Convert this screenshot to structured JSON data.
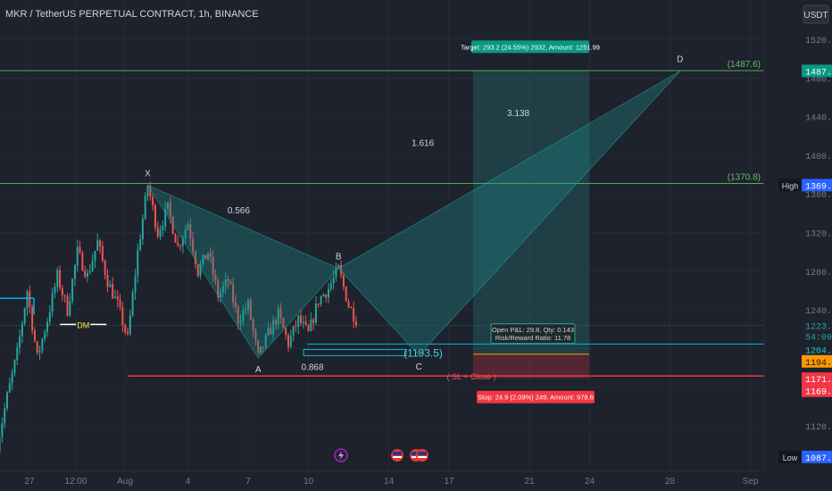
{
  "header": {
    "symbol_title": "MKR / TetherUS PERPETUAL CONTRACT, 1h, BINANCE",
    "currency": "USDT"
  },
  "colors": {
    "background": "#1e222d",
    "bull": "#26a69a",
    "bear": "#ef5350",
    "pattern_fill": "#1e8a8a",
    "target": "#26a69a",
    "stop": "#f23645",
    "level_line": "#4caf50",
    "entry_line": "#00bcd4"
  },
  "chart_data": {
    "type": "candlestick",
    "title": "MKR / TetherUS PERPETUAL CONTRACT, 1h, BINANCE",
    "interval": "1h",
    "ylim": [
      1080,
      1530
    ],
    "y_ticks": [
      1120,
      1160,
      1200,
      1240,
      1280,
      1320,
      1360,
      1400,
      1440,
      1480,
      1520
    ],
    "x_ticks": [
      "27",
      "12:00",
      "Aug",
      "4",
      "7",
      "10",
      "14",
      "17",
      "21",
      "24",
      "28",
      "Sep"
    ],
    "price_trace": [
      {
        "date": "Jul 25 12:00",
        "price": 1100
      },
      {
        "date": "Jul 26 00:00",
        "price": 1150
      },
      {
        "date": "Jul 26 12:00",
        "price": 1195
      },
      {
        "date": "Jul 27 00:00",
        "price": 1260
      },
      {
        "date": "Jul 27 12:00",
        "price": 1190
      },
      {
        "date": "Jul 28 00:00",
        "price": 1230
      },
      {
        "date": "Jul 28 12:00",
        "price": 1275
      },
      {
        "date": "Jul 29 00:00",
        "price": 1240
      },
      {
        "date": "Jul 29 12:00",
        "price": 1300
      },
      {
        "date": "Jul 30 00:00",
        "price": 1275
      },
      {
        "date": "Jul 30 12:00",
        "price": 1310
      },
      {
        "date": "Jul 31 00:00",
        "price": 1270
      },
      {
        "date": "Jul 31 12:00",
        "price": 1245
      },
      {
        "date": "Aug 1 00:00",
        "price": 1210
      },
      {
        "date": "Aug 1 12:00",
        "price": 1300
      },
      {
        "date": "Aug 2 00:00",
        "price": 1369
      },
      {
        "date": "Aug 2 12:00",
        "price": 1320
      },
      {
        "date": "Aug 3 00:00",
        "price": 1345
      },
      {
        "date": "Aug 3 12:00",
        "price": 1305
      },
      {
        "date": "Aug 4 00:00",
        "price": 1330
      },
      {
        "date": "Aug 4 12:00",
        "price": 1280
      },
      {
        "date": "Aug 5 00:00",
        "price": 1300
      },
      {
        "date": "Aug 5 12:00",
        "price": 1255
      },
      {
        "date": "Aug 6 00:00",
        "price": 1270
      },
      {
        "date": "Aug 6 12:00",
        "price": 1230
      },
      {
        "date": "Aug 7 00:00",
        "price": 1245
      },
      {
        "date": "Aug 7 12:00",
        "price": 1190
      },
      {
        "date": "Aug 8 00:00",
        "price": 1215
      },
      {
        "date": "Aug 8 12:00",
        "price": 1235
      },
      {
        "date": "Aug 9 00:00",
        "price": 1205
      },
      {
        "date": "Aug 9 12:00",
        "price": 1230
      },
      {
        "date": "Aug 10 00:00",
        "price": 1215
      },
      {
        "date": "Aug 10 12:00",
        "price": 1250
      },
      {
        "date": "Aug 11 00:00",
        "price": 1262
      },
      {
        "date": "Aug 11 12:00",
        "price": 1282
      },
      {
        "date": "Aug 12 00:00",
        "price": 1245
      },
      {
        "date": "Aug 12 12:00",
        "price": 1225
      }
    ],
    "harmonic_pattern": {
      "points": [
        {
          "label": "X",
          "date": "Aug 2 00:00",
          "price": 1369
        },
        {
          "label": "A",
          "date": "Aug 7 12:00",
          "price": 1190
        },
        {
          "label": "B",
          "date": "Aug 11 12:00",
          "price": 1283
        },
        {
          "label": "C",
          "date": "Aug 15 12:00",
          "price": 1193
        },
        {
          "label": "D",
          "date": "Aug 28 12:00",
          "price": 1487
        }
      ],
      "ratios": [
        {
          "label": "0.566",
          "near": "XB"
        },
        {
          "label": "0.868",
          "near": "AC"
        },
        {
          "label": "1.616",
          "near": "XD"
        },
        {
          "label": "3.138",
          "near": "BD"
        }
      ]
    },
    "horizontal_levels": [
      {
        "label": "(1487.6)",
        "price": 1487.6
      },
      {
        "label": "(1370.8)",
        "price": 1370.8
      },
      {
        "label": "(1193.5)",
        "price": 1193.5
      },
      {
        "label": "( SL + Close )",
        "price": 1171.6
      }
    ],
    "position": {
      "entry": 1194.1,
      "target": 1487.3,
      "stop": 1169.2,
      "target_text": "Target: 293.2 (24.55%) 2932, Amount: 1251.99",
      "stop_text": "Stop: 24.9 (2.09%) 249, Amount: 978.6",
      "open_pnl_text": "Open P&L: 29.8, Qty: 0.143",
      "rr_text": "Risk/Reward Ratio: 11.78"
    },
    "annotations": [
      {
        "label": "DM",
        "date": "Jul 30 12:00",
        "price": 1225
      }
    ],
    "price_tags": [
      {
        "value": "1487.3",
        "kind": "target"
      },
      {
        "value": "1369.1",
        "kind": "plain",
        "side": "High"
      },
      {
        "value": "1223.9",
        "kind": "current"
      },
      {
        "value": "54:09",
        "kind": "countdown"
      },
      {
        "value": "1204.6",
        "kind": "entry"
      },
      {
        "value": "1194.1",
        "kind": "entry_orange"
      },
      {
        "value": "1171.6",
        "kind": "stop"
      },
      {
        "value": "1169.2",
        "kind": "stop"
      },
      {
        "value": "1087.8",
        "kind": "plain",
        "side": "Low"
      }
    ]
  }
}
